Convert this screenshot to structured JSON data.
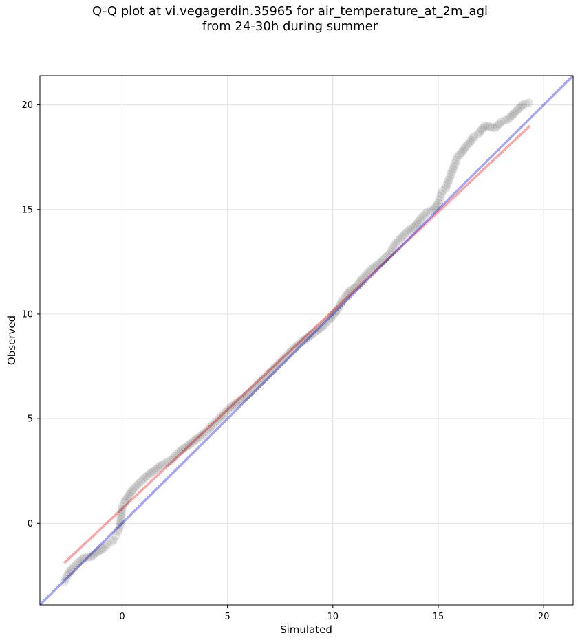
{
  "chart_data": {
    "type": "scatter",
    "title_line1": "Q-Q plot at vi.vegagerdin.35965 for air_temperature_at_2m_agl",
    "title_line2": "from 24-30h during summer",
    "xlabel": "Simulated",
    "ylabel": "Observed",
    "xlim": [
      -3.9,
      21.4
    ],
    "ylim": [
      -3.9,
      21.4
    ],
    "xticks": [
      0,
      5,
      10,
      15,
      20
    ],
    "yticks": [
      0,
      5,
      10,
      15,
      20
    ],
    "grid": true,
    "colors": {
      "points": "#000000",
      "fit_line": "#ff0000",
      "identity_line": "#0000ee"
    },
    "identity_line": {
      "x": [
        -3.9,
        21.4
      ],
      "y": [
        -3.9,
        21.4
      ]
    },
    "fit_line": {
      "x": [
        -2.75,
        19.35
      ],
      "y": [
        -1.9,
        19.0
      ]
    },
    "points": {
      "x": [
        -2.75,
        -2.6,
        -2.4,
        -2.2,
        -2.0,
        -1.8,
        -1.5,
        -1.2,
        -0.9,
        -0.7,
        -0.5,
        -0.4,
        -0.3,
        -0.2,
        -0.1,
        -0.05,
        0.0,
        0.1,
        0.3,
        0.5,
        0.8,
        1.1,
        1.5,
        1.9,
        2.3,
        2.7,
        3.1,
        3.5,
        3.9,
        4.3,
        4.7,
        5.1,
        5.5,
        5.9,
        6.3,
        6.7,
        7.1,
        7.5,
        7.9,
        8.3,
        8.7,
        9.1,
        9.5,
        9.9,
        10.2,
        10.5,
        10.8,
        11.1,
        11.5,
        11.9,
        12.3,
        12.7,
        13.0,
        13.3,
        13.6,
        13.9,
        14.2,
        14.5,
        14.8,
        15.0,
        15.1,
        15.2,
        15.35,
        15.5,
        15.65,
        15.8,
        15.9,
        16.1,
        16.3,
        16.5,
        16.7,
        16.9,
        17.2,
        17.7,
        18.0,
        18.3,
        19.0,
        19.3
      ],
      "y": [
        -2.8,
        -2.5,
        -2.2,
        -2.0,
        -1.8,
        -1.65,
        -1.6,
        -1.4,
        -1.2,
        -1.0,
        -0.9,
        -0.8,
        -0.6,
        -0.4,
        -0.1,
        0.3,
        0.8,
        1.0,
        1.3,
        1.6,
        1.9,
        2.2,
        2.5,
        2.8,
        3.0,
        3.4,
        3.7,
        4.0,
        4.3,
        4.7,
        5.1,
        5.5,
        5.8,
        6.1,
        6.5,
        6.9,
        7.3,
        7.7,
        8.1,
        8.5,
        8.8,
        9.1,
        9.4,
        9.8,
        10.2,
        10.7,
        11.1,
        11.3,
        11.8,
        12.2,
        12.5,
        12.9,
        13.4,
        13.7,
        14.0,
        14.2,
        14.6,
        14.9,
        15.0,
        15.3,
        15.6,
        15.9,
        16.0,
        16.4,
        16.8,
        17.2,
        17.5,
        17.7,
        18.0,
        18.2,
        18.5,
        18.6,
        19.0,
        18.9,
        19.2,
        19.3,
        20.0,
        20.1
      ]
    }
  }
}
